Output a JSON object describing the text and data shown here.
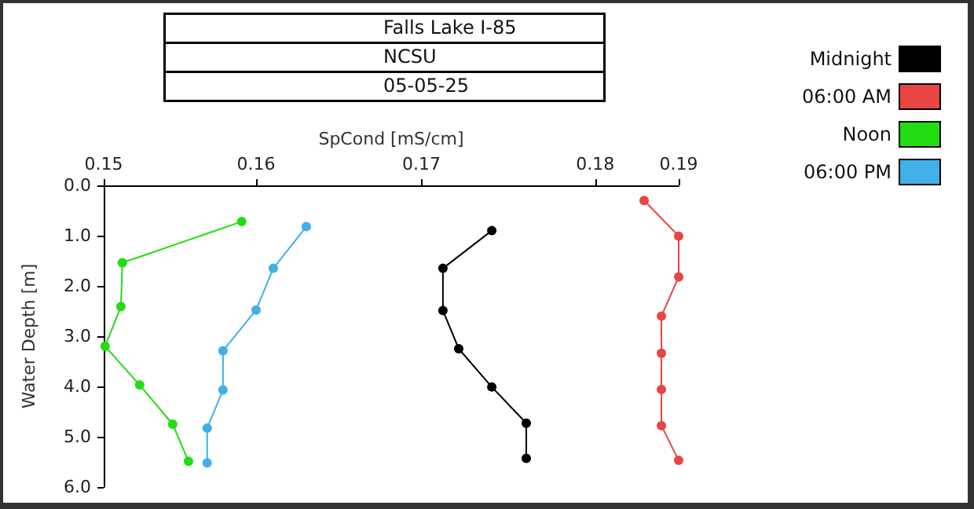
{
  "chart_data": {
    "type": "line",
    "title": "Falls Lake I-85",
    "subtitle": "NCSU",
    "annotations": [
      "05-05-25"
    ],
    "xlabel": "SpCond [mS/cm]",
    "ylabel": "Water Depth [m]",
    "xlim": [
      0.15,
      0.19
    ],
    "xticks": [
      0.15,
      {
        "value": 0.1606,
        "label": "0.16"
      },
      {
        "value": 0.1721,
        "label": "0.17"
      },
      {
        "value": 0.1842,
        "label": "0.18"
      },
      0.19
    ],
    "ylim": [
      6,
      0
    ],
    "yticks": [
      {
        "value": 0,
        "label": "0.0"
      },
      {
        "value": 1,
        "label": "1.0"
      },
      {
        "value": 2,
        "label": "2.0"
      },
      {
        "value": 3,
        "label": "3.0"
      },
      {
        "value": 4,
        "label": "4.0"
      },
      {
        "value": 5,
        "label": "5.0"
      },
      {
        "value": 6,
        "label": "6.0"
      }
    ],
    "grid": false,
    "legend": "top right",
    "marker": "circle",
    "line_style": "solid",
    "series": [
      {
        "name": "Midnight",
        "color": "#000000",
        "x": [
          0.177,
          0.1736,
          0.1736,
          0.1747,
          0.177,
          0.1794,
          0.1794
        ],
        "values": [
          0.9,
          1.65,
          2.49,
          3.25,
          4.01,
          4.73,
          5.43
        ]
      },
      {
        "name": "06:00 AM",
        "color": "#e84545",
        "x": [
          0.1876,
          0.19,
          0.19,
          0.1888,
          0.1888,
          0.1888,
          0.1888,
          0.19
        ],
        "values": [
          0.3,
          1.01,
          1.82,
          2.6,
          3.34,
          4.06,
          4.78,
          5.47
        ]
      },
      {
        "name": "Noon",
        "color": "#22dd11",
        "x": [
          0.1596,
          0.1513,
          0.1512,
          0.1501,
          0.1525,
          0.1548,
          0.1559
        ],
        "values": [
          0.72,
          1.54,
          2.41,
          3.2,
          3.97,
          4.75,
          5.49
        ]
      },
      {
        "name": "06:00 PM",
        "color": "#3fb0e8",
        "x": [
          0.1641,
          0.1618,
          0.1606,
          0.1583,
          0.1583,
          0.1572,
          0.1572
        ],
        "values": [
          0.82,
          1.65,
          2.48,
          3.29,
          4.07,
          4.83,
          5.52
        ]
      }
    ]
  }
}
